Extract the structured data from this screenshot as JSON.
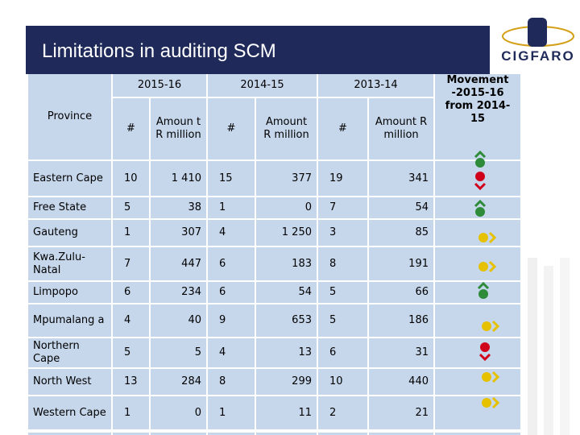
{
  "header": {
    "title": "Limitations in auditing SCM",
    "logo": "CIGFARO"
  },
  "table": {
    "years": [
      "2015-16",
      "2014-15",
      "2013-14"
    ],
    "columns": [
      "Province",
      "#",
      "Amoun t R million",
      "#",
      "Amount R million",
      "#",
      "Amount R million",
      "Movement -2015-16 from 2014-15"
    ],
    "rows": [
      [
        "Eastern Cape",
        "10",
        "1 410",
        "15",
        "377",
        "19",
        "341"
      ],
      [
        "Free State",
        "5",
        "38",
        "1",
        "0",
        "7",
        "54"
      ],
      [
        "Gauteng",
        "1",
        "307",
        "4",
        "1 250",
        "3",
        "85"
      ],
      [
        "Kwa.Zulu-Natal",
        "7",
        "447",
        "6",
        "183",
        "8",
        "191"
      ],
      [
        "Limpopo",
        "6",
        "234",
        "6",
        "54",
        "5",
        "66"
      ],
      [
        "Mpumalang a",
        "4",
        "40",
        "9",
        "653",
        "5",
        "186"
      ],
      [
        "Northern Cape",
        "5",
        "5",
        "4",
        "13",
        "6",
        "31"
      ],
      [
        "North West",
        "13",
        "284",
        "8",
        "299",
        "10",
        "440"
      ],
      [
        "Western Cape",
        "1",
        "0",
        "1",
        "11",
        "2",
        "21"
      ]
    ]
  }
}
